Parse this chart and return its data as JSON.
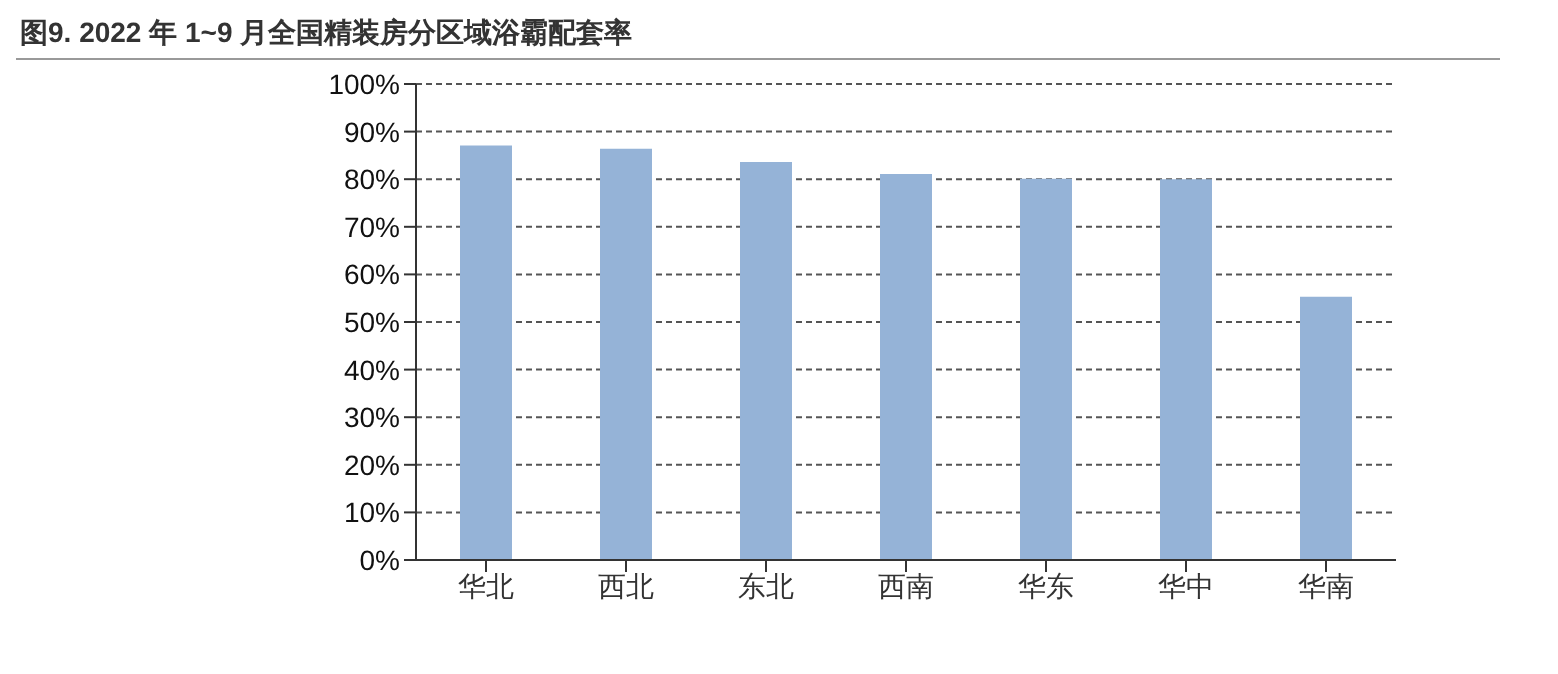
{
  "chart_data": {
    "type": "bar",
    "title": "图9. 2022 年 1~9 月全国精装房分区域浴霸配套率",
    "categories": [
      "华北",
      "西北",
      "东北",
      "西南",
      "华东",
      "华中",
      "华南"
    ],
    "values": [
      87.1,
      86.4,
      83.6,
      81.1,
      80.1,
      80,
      55.3
    ],
    "color": "#95b3d7",
    "ylim": [
      0,
      100
    ],
    "yticks": [
      {
        "value": 0,
        "label": "0%"
      },
      {
        "value": 10,
        "label": "10%"
      },
      {
        "value": 20,
        "label": "20%"
      },
      {
        "value": 30,
        "label": "30%"
      },
      {
        "value": 40,
        "label": "40%"
      },
      {
        "value": 50,
        "label": "50%"
      },
      {
        "value": 60,
        "label": "60%"
      },
      {
        "value": 70,
        "label": "70%"
      },
      {
        "value": 80,
        "label": "80%"
      },
      {
        "value": 90,
        "label": "90%"
      },
      {
        "value": 100,
        "label": "100%"
      }
    ],
    "grid": "y"
  }
}
